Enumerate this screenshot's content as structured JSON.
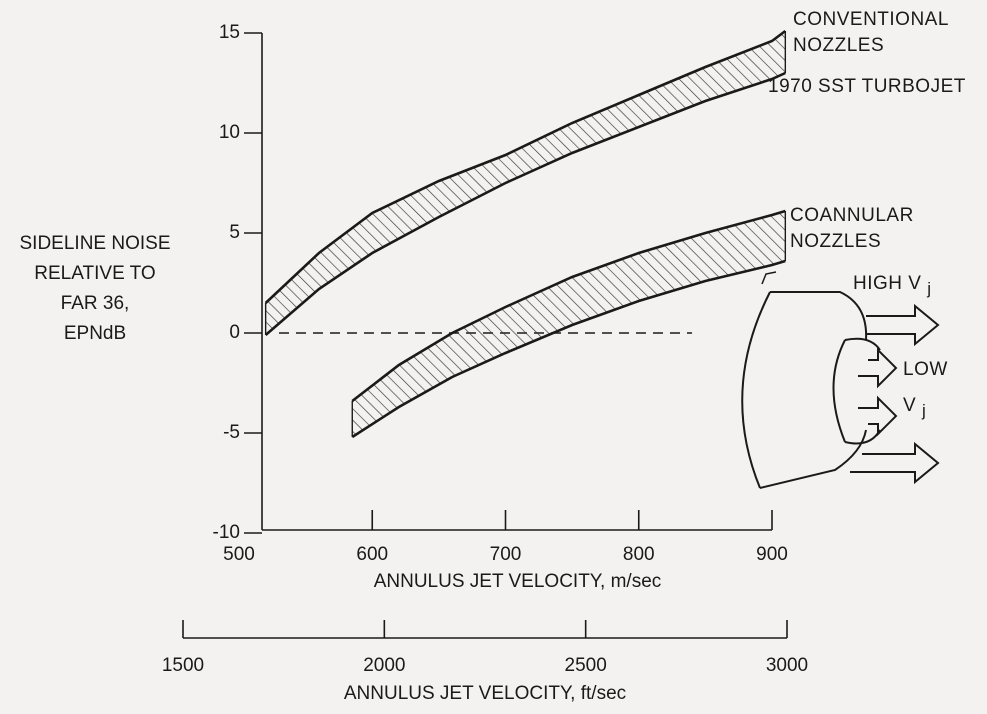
{
  "chart_data": {
    "type": "band",
    "ylabel": [
      "SIDELINE NOISE",
      "RELATIVE TO",
      "FAR 36,",
      "EPNdB"
    ],
    "xlabel": "ANNULUS JET VELOCITY, m/sec",
    "x2label": "ANNULUS JET VELOCITY, ft/sec",
    "xlim": [
      500,
      915
    ],
    "xticks": [
      500,
      600,
      700,
      800,
      900
    ],
    "x2lim": [
      1500,
      3000
    ],
    "x2ticks": [
      1500,
      2000,
      2500,
      3000
    ],
    "ylim": [
      -10,
      15
    ],
    "yticks": [
      -10,
      -5,
      0,
      5,
      10,
      15
    ],
    "reference_line": {
      "y": 0,
      "x": [
        530,
        840
      ]
    },
    "series": [
      {
        "name": "CONVENTIONAL NOZZLES",
        "color": "#1a1a1a",
        "x": [
          520,
          560,
          600,
          650,
          700,
          750,
          800,
          850,
          900,
          910
        ],
        "upper": [
          1.5,
          4.0,
          6.0,
          7.6,
          8.9,
          10.5,
          11.9,
          13.3,
          14.6,
          15.1
        ],
        "lower": [
          -0.1,
          2.2,
          4.0,
          5.8,
          7.5,
          9.0,
          10.3,
          11.6,
          12.7,
          13.0
        ]
      },
      {
        "name": "COANNULAR NOZZLES",
        "color": "#1a1a1a",
        "x": [
          585,
          620,
          660,
          700,
          750,
          800,
          850,
          900,
          910
        ],
        "upper": [
          -3.4,
          -1.6,
          0.0,
          1.3,
          2.8,
          4.0,
          5.0,
          5.9,
          6.1
        ],
        "lower": [
          -5.2,
          -3.7,
          -2.2,
          -1.0,
          0.4,
          1.6,
          2.6,
          3.4,
          3.6
        ]
      }
    ],
    "annotations": [
      {
        "text": "1970 SST TURBOJET"
      },
      {
        "text": "HIGH V",
        "sub": "j"
      },
      {
        "text": "LOW",
        "sub_line": "V",
        "sub": "j"
      }
    ]
  }
}
